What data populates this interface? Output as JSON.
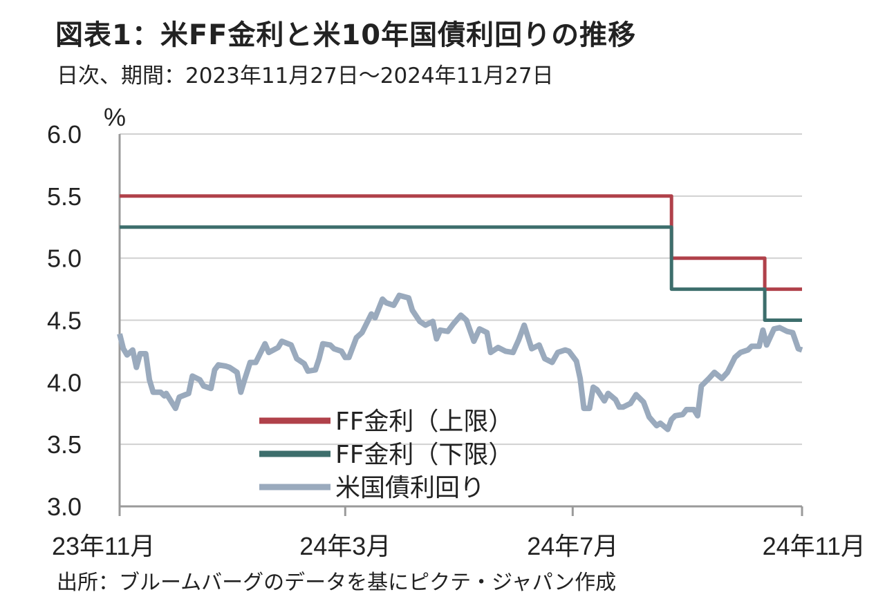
{
  "title": "図表1：米FF金利と米10年国債利回りの推移",
  "subtitle": "日次、期間：2023年11月27日～2024年11月27日",
  "source": "出所：ブルームバーグのデータを基にピクテ・ジャパン作成",
  "chart_data": {
    "type": "line",
    "y_unit": "%",
    "ylim": [
      3.0,
      6.0
    ],
    "y_ticks": [
      "6.0",
      "5.5",
      "5.0",
      "4.5",
      "4.0",
      "3.5",
      "3.0"
    ],
    "y_tick_values": [
      6.0,
      5.5,
      5.0,
      4.5,
      4.0,
      3.5,
      3.0
    ],
    "xlim": [
      "2023-11-27",
      "2024-11-27"
    ],
    "x_ticks": [
      {
        "label": "23年11月",
        "date": "2023-11-27"
      },
      {
        "label": "24年3月",
        "date": "2024-03-27"
      },
      {
        "label": "24年7月",
        "date": "2024-07-27"
      },
      {
        "label": "24年11月",
        "date": "2024-11-27"
      }
    ],
    "grid": true,
    "legend_position": "lower-left",
    "series": [
      {
        "name": "FF金利（上限）",
        "color": "#b0414a",
        "step": true,
        "points": [
          [
            "2023-11-27",
            5.5
          ],
          [
            "2024-09-18",
            5.0
          ],
          [
            "2024-11-07",
            4.75
          ],
          [
            "2024-11-27",
            4.75
          ]
        ]
      },
      {
        "name": "FF金利（下限）",
        "color": "#3d6e6c",
        "step": true,
        "points": [
          [
            "2023-11-27",
            5.25
          ],
          [
            "2024-09-18",
            4.75
          ],
          [
            "2024-11-07",
            4.5
          ],
          [
            "2024-11-27",
            4.5
          ]
        ]
      },
      {
        "name": "米国債利回り",
        "color": "#9aaabd",
        "step": false,
        "points": [
          [
            "2023-11-27",
            4.39
          ],
          [
            "2023-11-29",
            4.27
          ],
          [
            "2023-12-01",
            4.22
          ],
          [
            "2023-12-04",
            4.26
          ],
          [
            "2023-12-06",
            4.12
          ],
          [
            "2023-12-08",
            4.23
          ],
          [
            "2023-12-11",
            4.23
          ],
          [
            "2023-12-13",
            4.02
          ],
          [
            "2023-12-15",
            3.92
          ],
          [
            "2023-12-19",
            3.92
          ],
          [
            "2023-12-21",
            3.89
          ],
          [
            "2023-12-22",
            3.91
          ],
          [
            "2023-12-27",
            3.79
          ],
          [
            "2023-12-29",
            3.88
          ],
          [
            "2024-01-03",
            3.91
          ],
          [
            "2024-01-05",
            4.05
          ],
          [
            "2024-01-09",
            4.02
          ],
          [
            "2024-01-11",
            3.97
          ],
          [
            "2024-01-15",
            3.95
          ],
          [
            "2024-01-17",
            4.1
          ],
          [
            "2024-01-19",
            4.14
          ],
          [
            "2024-01-23",
            4.13
          ],
          [
            "2024-01-25",
            4.12
          ],
          [
            "2024-01-29",
            4.08
          ],
          [
            "2024-01-31",
            3.92
          ],
          [
            "2024-02-02",
            4.02
          ],
          [
            "2024-02-05",
            4.16
          ],
          [
            "2024-02-08",
            4.16
          ],
          [
            "2024-02-13",
            4.31
          ],
          [
            "2024-02-15",
            4.24
          ],
          [
            "2024-02-20",
            4.28
          ],
          [
            "2024-02-22",
            4.33
          ],
          [
            "2024-02-27",
            4.3
          ],
          [
            "2024-03-01",
            4.19
          ],
          [
            "2024-03-05",
            4.15
          ],
          [
            "2024-03-07",
            4.09
          ],
          [
            "2024-03-11",
            4.1
          ],
          [
            "2024-03-13",
            4.19
          ],
          [
            "2024-03-15",
            4.31
          ],
          [
            "2024-03-19",
            4.3
          ],
          [
            "2024-03-21",
            4.27
          ],
          [
            "2024-03-25",
            4.25
          ],
          [
            "2024-03-27",
            4.2
          ],
          [
            "2024-03-29",
            4.2
          ],
          [
            "2024-04-02",
            4.36
          ],
          [
            "2024-04-05",
            4.4
          ],
          [
            "2024-04-10",
            4.55
          ],
          [
            "2024-04-12",
            4.52
          ],
          [
            "2024-04-16",
            4.67
          ],
          [
            "2024-04-18",
            4.64
          ],
          [
            "2024-04-22",
            4.62
          ],
          [
            "2024-04-25",
            4.7
          ],
          [
            "2024-04-30",
            4.68
          ],
          [
            "2024-05-02",
            4.58
          ],
          [
            "2024-05-06",
            4.49
          ],
          [
            "2024-05-09",
            4.46
          ],
          [
            "2024-05-13",
            4.49
          ],
          [
            "2024-05-15",
            4.35
          ],
          [
            "2024-05-17",
            4.42
          ],
          [
            "2024-05-21",
            4.41
          ],
          [
            "2024-05-24",
            4.47
          ],
          [
            "2024-05-28",
            4.54
          ],
          [
            "2024-05-31",
            4.5
          ],
          [
            "2024-06-04",
            4.33
          ],
          [
            "2024-06-07",
            4.43
          ],
          [
            "2024-06-11",
            4.4
          ],
          [
            "2024-06-13",
            4.24
          ],
          [
            "2024-06-17",
            4.28
          ],
          [
            "2024-06-21",
            4.25
          ],
          [
            "2024-06-25",
            4.24
          ],
          [
            "2024-06-28",
            4.34
          ],
          [
            "2024-07-01",
            4.46
          ],
          [
            "2024-07-05",
            4.27
          ],
          [
            "2024-07-09",
            4.3
          ],
          [
            "2024-07-12",
            4.19
          ],
          [
            "2024-07-16",
            4.16
          ],
          [
            "2024-07-19",
            4.24
          ],
          [
            "2024-07-23",
            4.26
          ],
          [
            "2024-07-25",
            4.25
          ],
          [
            "2024-07-29",
            4.17
          ],
          [
            "2024-07-31",
            4.03
          ],
          [
            "2024-08-02",
            3.79
          ],
          [
            "2024-08-05",
            3.79
          ],
          [
            "2024-08-07",
            3.96
          ],
          [
            "2024-08-09",
            3.94
          ],
          [
            "2024-08-13",
            3.85
          ],
          [
            "2024-08-15",
            3.91
          ],
          [
            "2024-08-19",
            3.86
          ],
          [
            "2024-08-21",
            3.8
          ],
          [
            "2024-08-23",
            3.8
          ],
          [
            "2024-08-27",
            3.83
          ],
          [
            "2024-08-30",
            3.9
          ],
          [
            "2024-09-03",
            3.84
          ],
          [
            "2024-09-06",
            3.72
          ],
          [
            "2024-09-10",
            3.65
          ],
          [
            "2024-09-12",
            3.67
          ],
          [
            "2024-09-16",
            3.62
          ],
          [
            "2024-09-18",
            3.7
          ],
          [
            "2024-09-20",
            3.73
          ],
          [
            "2024-09-24",
            3.74
          ],
          [
            "2024-09-26",
            3.78
          ],
          [
            "2024-09-30",
            3.78
          ],
          [
            "2024-10-02",
            3.73
          ],
          [
            "2024-10-04",
            3.97
          ],
          [
            "2024-10-08",
            4.03
          ],
          [
            "2024-10-11",
            4.08
          ],
          [
            "2024-10-15",
            4.03
          ],
          [
            "2024-10-18",
            4.08
          ],
          [
            "2024-10-22",
            4.2
          ],
          [
            "2024-10-25",
            4.24
          ],
          [
            "2024-10-29",
            4.26
          ],
          [
            "2024-10-31",
            4.29
          ],
          [
            "2024-11-04",
            4.29
          ],
          [
            "2024-11-06",
            4.42
          ],
          [
            "2024-11-08",
            4.3
          ],
          [
            "2024-11-12",
            4.43
          ],
          [
            "2024-11-15",
            4.44
          ],
          [
            "2024-11-19",
            4.41
          ],
          [
            "2024-11-22",
            4.4
          ],
          [
            "2024-11-25",
            4.27
          ],
          [
            "2024-11-27",
            4.26
          ]
        ]
      }
    ]
  }
}
